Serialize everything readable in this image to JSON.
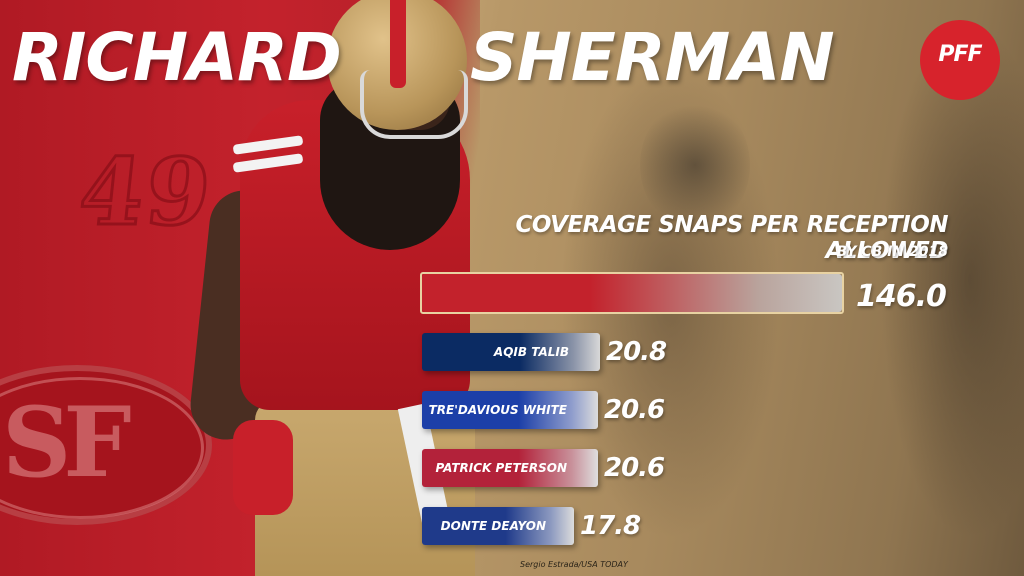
{
  "title": {
    "first_name": "RICHARD",
    "last_name": "SHERMAN"
  },
  "branding": {
    "pff_logo_text": "PFF",
    "team_number": "49",
    "team_logo_text": "SF"
  },
  "colors": {
    "team_red": "#c3222c",
    "pff_red": "#d7232c",
    "gold": "#c4a574",
    "broncos_navy": "#0b2b63",
    "bills_blue": "#1c3fa8",
    "cardinals_red": "#b3223a",
    "raiders_navy": "#1f3a8a"
  },
  "chart_data": {
    "type": "bar",
    "orientation": "horizontal",
    "title": "COVERAGE SNAPS PER RECEPTION ALLOWED",
    "subtitle": "BY CB IN 2018",
    "categories": [
      "",
      "AQIB TALIB",
      "TRE'DAVIOUS WHITE",
      "PATRICK PETERSON",
      "DONTE DEAYON"
    ],
    "values": [
      146.0,
      20.8,
      20.6,
      20.6,
      17.8
    ],
    "value_labels": [
      "146.0",
      "20.8",
      "20.6",
      "20.6",
      "17.8"
    ],
    "bar_colors": [
      "#c3222c",
      "#0b2b63",
      "#1c3fa8",
      "#b3223a",
      "#1f3a8a"
    ],
    "grid": false,
    "legend": "none"
  },
  "credit": "Sergio Estrada/USA TODAY"
}
